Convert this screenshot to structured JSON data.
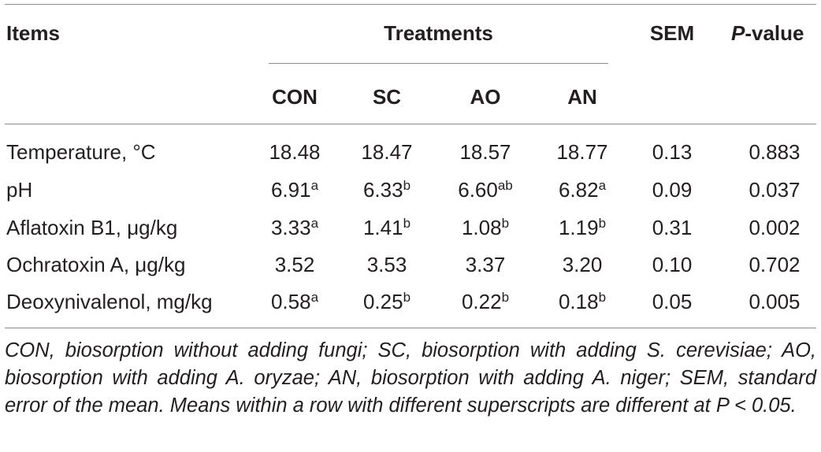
{
  "header": {
    "items": "Items",
    "treatments": "Treatments",
    "sem": "SEM",
    "pvalue_italic": "P",
    "pvalue_rest": "-value",
    "groups": [
      "CON",
      "SC",
      "AO",
      "AN"
    ]
  },
  "rows": [
    {
      "label": "Temperature, °C",
      "values": [
        {
          "v": "18.48",
          "s": ""
        },
        {
          "v": "18.47",
          "s": ""
        },
        {
          "v": "18.57",
          "s": ""
        },
        {
          "v": "18.77",
          "s": ""
        }
      ],
      "sem": "0.13",
      "p": "0.883"
    },
    {
      "label": "pH",
      "values": [
        {
          "v": "6.91",
          "s": "a"
        },
        {
          "v": "6.33",
          "s": "b"
        },
        {
          "v": "6.60",
          "s": "ab"
        },
        {
          "v": "6.82",
          "s": "a"
        }
      ],
      "sem": "0.09",
      "p": "0.037"
    },
    {
      "label": "Aflatoxin B1, μg/kg",
      "values": [
        {
          "v": "3.33",
          "s": "a"
        },
        {
          "v": "1.41",
          "s": "b"
        },
        {
          "v": "1.08",
          "s": "b"
        },
        {
          "v": "1.19",
          "s": "b"
        }
      ],
      "sem": "0.31",
      "p": "0.002"
    },
    {
      "label": "Ochratoxin A, μg/kg",
      "values": [
        {
          "v": "3.52",
          "s": ""
        },
        {
          "v": "3.53",
          "s": ""
        },
        {
          "v": "3.37",
          "s": ""
        },
        {
          "v": "3.20",
          "s": ""
        }
      ],
      "sem": "0.10",
      "p": "0.702"
    },
    {
      "label": "Deoxynivalenol, mg/kg",
      "values": [
        {
          "v": "0.58",
          "s": "a"
        },
        {
          "v": "0.25",
          "s": "b"
        },
        {
          "v": "0.22",
          "s": "b"
        },
        {
          "v": "0.18",
          "s": "b"
        }
      ],
      "sem": "0.05",
      "p": "0.005"
    }
  ],
  "footnote": "CON, biosorption without adding fungi; SC, biosorption with adding S. cerevisiae; AO, biosorption with adding A. oryzae; AN, biosorption with adding A. niger; SEM, standard error of the mean. Means within a row with different superscripts are different at P < 0.05."
}
